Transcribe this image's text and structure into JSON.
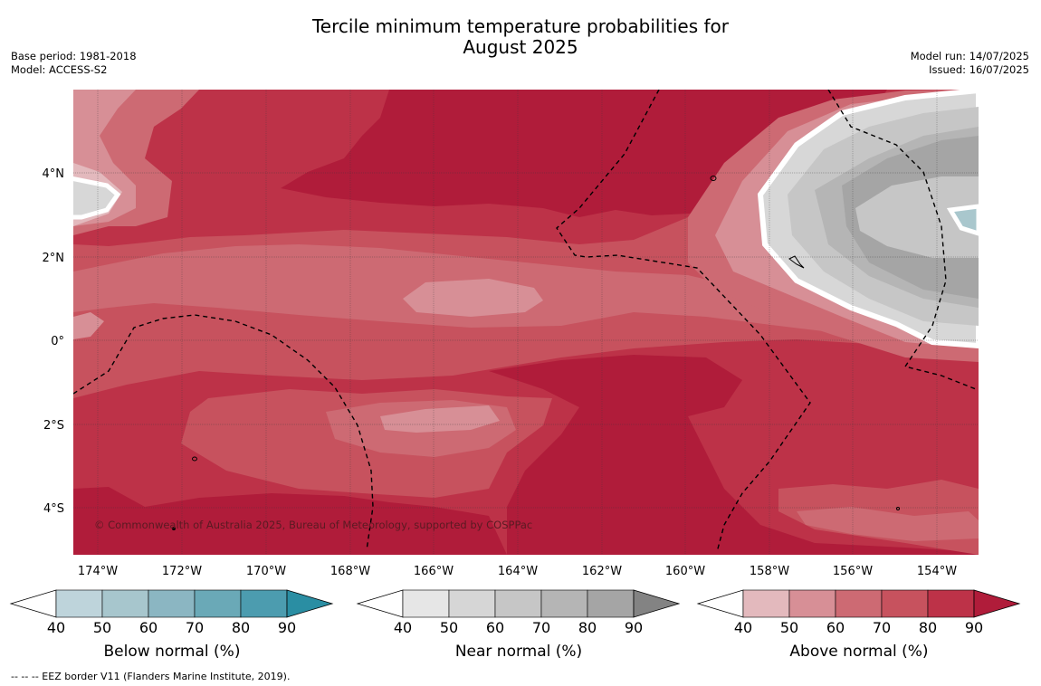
{
  "title": {
    "line1": "Tercile minimum temperature probabilities for",
    "line2": "August 2025"
  },
  "meta": {
    "base_period": "Base period: 1981-2018",
    "model": "Model: ACCESS-S2",
    "model_run": "Model run: 14/07/2025",
    "issued": "Issued: 16/07/2025"
  },
  "map": {
    "lon_ticks": [
      "174°W",
      "172°W",
      "170°W",
      "168°W",
      "166°W",
      "164°W",
      "162°W",
      "160°W",
      "158°W",
      "156°W",
      "154°W"
    ],
    "lat_ticks": [
      "4°N",
      "2°N",
      "0°",
      "2°S",
      "4°S"
    ],
    "credit": "© Commonwealth of Australia 2025, Bureau of Meteorology, supported by COSPPac",
    "colors": {
      "above_70": "#c7525e",
      "above_80": "#bd3248",
      "above_90": "#b01c3a",
      "above_60": "#cd6a73",
      "above_50": "#d78f96",
      "above_40": "#e3b9bd",
      "near_60": "#c6c6c6",
      "near_70": "#b5b5b5",
      "near_80": "#a5a5a5",
      "near_50": "#d7d7d7",
      "below_50": "#a9c7cd"
    }
  },
  "colorbars": [
    {
      "name": "below",
      "label": "Below normal (%)",
      "ticks": [
        "40",
        "50",
        "60",
        "70",
        "80",
        "90"
      ],
      "colors": [
        "#ffffff",
        "#bed4db",
        "#a7c6cd",
        "#8bb6c2",
        "#6aa9b7",
        "#4c9caf",
        "#2a8ea3"
      ]
    },
    {
      "name": "near",
      "label": "Near normal (%)",
      "ticks": [
        "40",
        "50",
        "60",
        "70",
        "80",
        "90"
      ],
      "colors": [
        "#ffffff",
        "#e6e6e6",
        "#d6d6d6",
        "#c6c6c6",
        "#b5b5b5",
        "#a5a5a5",
        "#838383"
      ]
    },
    {
      "name": "above",
      "label": "Above normal (%)",
      "ticks": [
        "40",
        "50",
        "60",
        "70",
        "80",
        "90"
      ],
      "colors": [
        "#ffffff",
        "#e3b9bd",
        "#d78f96",
        "#cd6a73",
        "#c7525e",
        "#bd3248",
        "#b01c3a"
      ]
    }
  ],
  "footnote": "--  --  -- EEZ border V11 (Flanders Marine Institute, 2019)."
}
